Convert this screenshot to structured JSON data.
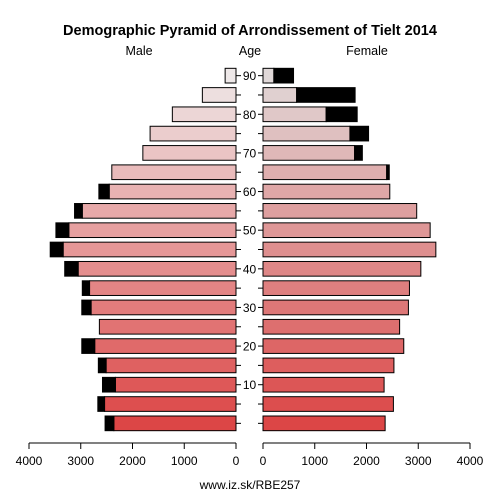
{
  "chart_data": {
    "type": "bar",
    "orientation": "horizontal",
    "title": "Demographic Pyramid of Arrondissement of Tielt 2014",
    "left_label": "Male",
    "center_label": "Age",
    "right_label": "Female",
    "footer": "www.iz.sk/RBE257",
    "age_groups": [
      "0-4",
      "5-9",
      "10-14",
      "15-19",
      "20-24",
      "25-29",
      "30-34",
      "35-39",
      "40-44",
      "45-49",
      "50-54",
      "55-59",
      "60-64",
      "65-69",
      "70-74",
      "75-79",
      "80-84",
      "85-89",
      "90+"
    ],
    "age_tick_labels": [
      "10",
      "20",
      "30",
      "40",
      "50",
      "60",
      "70",
      "80",
      "90"
    ],
    "x_tick_labels": [
      "4000",
      "3000",
      "2000",
      "1000",
      "0",
      "0",
      "1000",
      "2000",
      "3000",
      "4000"
    ],
    "xlim": [
      0,
      4000
    ],
    "series": [
      {
        "name": "Male",
        "values": [
          2360,
          2540,
          2330,
          2510,
          2730,
          2640,
          2800,
          2830,
          3050,
          3340,
          3230,
          2970,
          2450,
          2400,
          1800,
          1660,
          1230,
          650,
          210
        ],
        "excess": [
          170,
          130,
          250,
          150,
          250,
          0,
          180,
          140,
          260,
          250,
          250,
          150,
          200,
          0,
          0,
          0,
          0,
          0,
          0
        ]
      },
      {
        "name": "Female",
        "values": [
          2360,
          2520,
          2340,
          2530,
          2720,
          2640,
          2810,
          2830,
          3050,
          3340,
          3230,
          2970,
          2450,
          2390,
          1770,
          1680,
          1220,
          650,
          210
        ],
        "excess": [
          0,
          0,
          0,
          0,
          0,
          0,
          0,
          0,
          0,
          0,
          0,
          0,
          0,
          50,
          150,
          360,
          600,
          1130,
          380
        ]
      }
    ]
  }
}
